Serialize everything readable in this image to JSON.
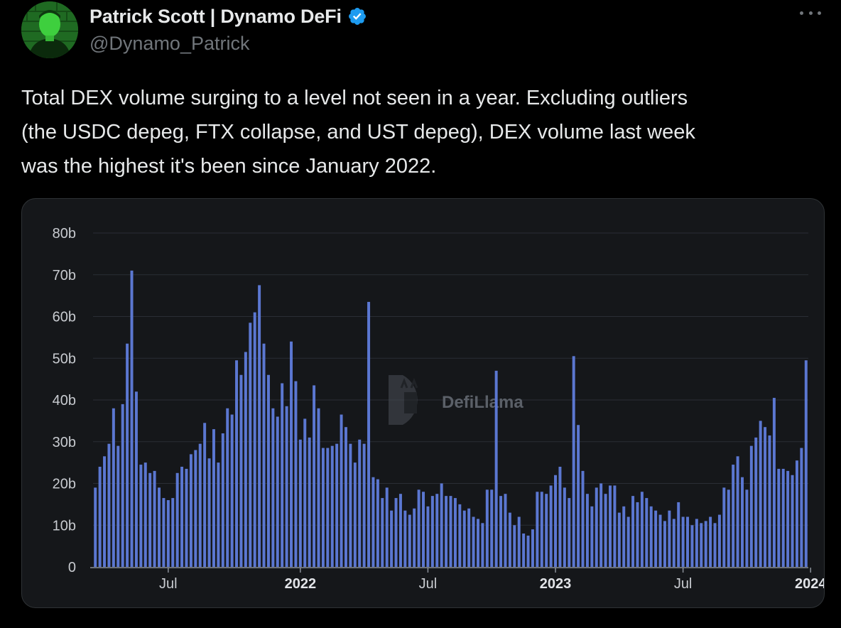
{
  "tweet": {
    "author_name": "Patrick Scott | Dynamo DeFi",
    "handle": "@Dynamo_Patrick",
    "verified": true,
    "avatar_icon": "avatar-photo",
    "more_icon": "ellipsis-icon",
    "text_lines": [
      "Total DEX volume surging to a level not seen in a year. Excluding outliers",
      "(the USDC depeg, FTX collapse, and UST depeg), DEX volume last week",
      "was the highest it's been since January 2022."
    ]
  },
  "chart_data": {
    "type": "bar",
    "title": "",
    "xlabel": "",
    "ylabel": "",
    "ylim": [
      0,
      80
    ],
    "y_unit": "b",
    "yticks": [
      "80b",
      "70b",
      "60b",
      "50b",
      "40b",
      "30b",
      "20b",
      "10b",
      "0"
    ],
    "xticks": [
      {
        "label": "Jul",
        "index": 16,
        "bold": false
      },
      {
        "label": "2022",
        "index": 45,
        "bold": true
      },
      {
        "label": "Jul",
        "index": 73,
        "bold": false
      },
      {
        "label": "2023",
        "index": 101,
        "bold": true
      },
      {
        "label": "Jul",
        "index": 129,
        "bold": false
      },
      {
        "label": "2024",
        "index": 157,
        "bold": true
      }
    ],
    "watermark": "DefiLlama",
    "bar_color": "#5b77d1",
    "values": [
      19,
      24,
      26.5,
      29.5,
      38,
      29,
      39,
      53.5,
      71,
      42,
      24.5,
      25,
      22.5,
      23,
      19,
      16.5,
      16,
      16.5,
      22.5,
      24,
      23.5,
      27,
      28,
      29.5,
      34.5,
      26,
      33,
      25,
      32,
      38,
      36.5,
      49.5,
      46,
      51.5,
      58.5,
      61,
      67.5,
      53.5,
      46,
      38,
      36,
      44,
      38.5,
      54,
      44.5,
      30.5,
      35.5,
      31,
      43.5,
      38,
      28.5,
      28.5,
      29,
      29.5,
      36.5,
      33.5,
      29.5,
      25,
      30.5,
      29.5,
      63.5,
      21.5,
      21,
      16.5,
      19,
      13.5,
      16.5,
      17.5,
      13.5,
      12.5,
      14,
      18.5,
      18,
      14.5,
      17,
      17.5,
      20,
      17,
      17,
      16.5,
      15,
      13.5,
      14,
      12,
      11.5,
      10.5,
      18.5,
      18.5,
      47,
      17,
      17.5,
      13,
      10,
      12,
      8,
      7.5,
      9,
      18,
      18,
      17.5,
      19.5,
      22,
      24,
      19,
      16.5,
      50.5,
      34,
      23,
      17.5,
      14.5,
      19,
      20,
      17.5,
      19.5,
      19.5,
      13,
      14.5,
      12,
      17,
      15.5,
      18,
      16.5,
      14.5,
      13.5,
      12.5,
      11,
      13.5,
      11.5,
      15.5,
      12,
      12,
      10,
      11.5,
      10.5,
      11,
      12,
      10.5,
      12.5,
      19,
      18.5,
      24.5,
      26.5,
      21.5,
      18.5,
      29,
      31,
      35,
      33.5,
      31.5,
      40.5,
      23.5,
      23.5,
      23,
      22,
      25.5,
      28.5,
      49.5
    ]
  }
}
